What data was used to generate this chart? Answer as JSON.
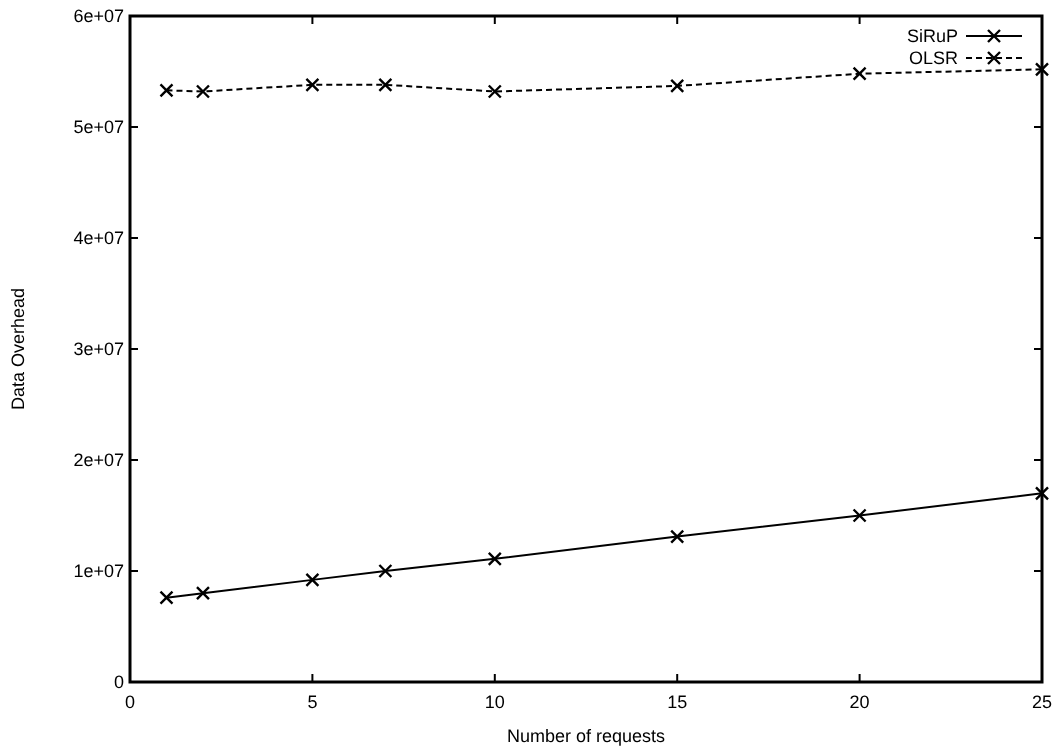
{
  "chart_data": {
    "type": "line",
    "xlabel": "Number of requests",
    "ylabel": "Data Overhead",
    "x": [
      1,
      2,
      5,
      7,
      10,
      15,
      20,
      25
    ],
    "xlim": [
      0,
      25
    ],
    "xticks": [
      0,
      5,
      10,
      15,
      20,
      25
    ],
    "ylim": [
      0,
      60000000
    ],
    "yticks": [
      0,
      {
        "value": 10000000,
        "label": "1e+07"
      },
      {
        "value": 20000000,
        "label": "2e+07"
      },
      {
        "value": 30000000,
        "label": "3e+07"
      },
      {
        "value": 40000000,
        "label": "4e+07"
      },
      {
        "value": 50000000,
        "label": "5e+07"
      },
      {
        "value": 60000000,
        "label": "6e+07"
      }
    ],
    "series": [
      {
        "name": "SiRuP",
        "color": "#000000",
        "marker": "cross",
        "line_style": "solid",
        "values": [
          7600000,
          8000000,
          9200000,
          10000000,
          11100000,
          13100000,
          15000000,
          17000000
        ]
      },
      {
        "name": "OLSR",
        "color": "#000000",
        "marker": "cross",
        "line_style": "dashed",
        "values": [
          53300000,
          53200000,
          53800000,
          53800000,
          53200000,
          53700000,
          54800000,
          55200000
        ]
      }
    ],
    "legend": "top right",
    "grid": false
  }
}
